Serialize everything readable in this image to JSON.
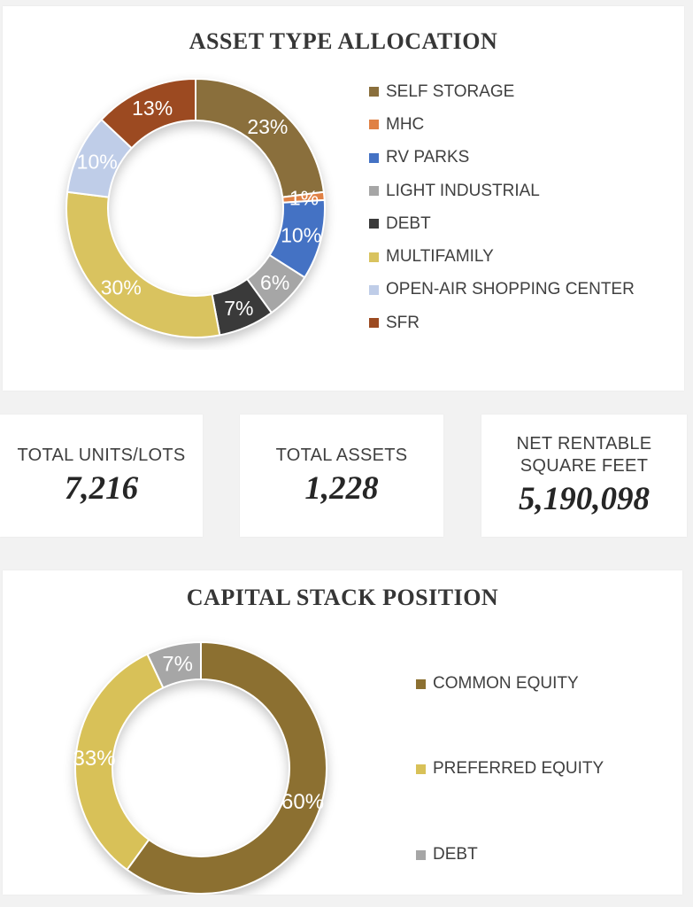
{
  "page": {
    "background_color": "#F2F2F2",
    "card_color": "#FFFFFF"
  },
  "stats": [
    {
      "label": "TOTAL UNITS/LOTS",
      "value": "7,216"
    },
    {
      "label": "TOTAL ASSETS",
      "value": "1,228"
    },
    {
      "label": "NET RENTABLE SQUARE FEET",
      "value": "5,190,098"
    }
  ],
  "chart_data": [
    {
      "type": "pie",
      "subtype": "donut",
      "title": "ASSET TYPE ALLOCATION",
      "categories": [
        "SELF STORAGE",
        "MHC",
        "RV PARKS",
        "LIGHT INDUSTRIAL",
        "DEBT",
        "MULTIFAMILY",
        "OPEN-AIR SHOPPING CENTER",
        "SFR"
      ],
      "values": [
        23,
        1,
        10,
        6,
        7,
        30,
        10,
        13
      ],
      "data_labels": [
        "23%",
        "1%",
        "10%",
        "6%",
        "7%",
        "30%",
        "10%",
        "13%"
      ],
      "colors": [
        "#8A6F3C",
        "#E08145",
        "#4472C4",
        "#A6A6A6",
        "#3A3A3A",
        "#D9C35F",
        "#BFCDE8",
        "#9C4A21"
      ],
      "unit": "percent",
      "start_angle_deg": 0,
      "direction": "clockwise",
      "legend_position": "right",
      "label_color": "#FFFFFF",
      "title_color": "#363636"
    },
    {
      "type": "pie",
      "subtype": "donut",
      "title": "CAPITAL STACK POSITION",
      "categories": [
        "COMMON EQUITY",
        "PREFERRED EQUITY",
        "DEBT"
      ],
      "values": [
        60,
        33,
        7
      ],
      "data_labels": [
        "60%",
        "33%",
        "7%"
      ],
      "colors": [
        "#8C7031",
        "#D8C158",
        "#A6A6A6"
      ],
      "unit": "percent",
      "start_angle_deg": 0,
      "direction": "clockwise",
      "legend_position": "right",
      "label_color": "#FFFFFF",
      "title_color": "#363636"
    }
  ]
}
